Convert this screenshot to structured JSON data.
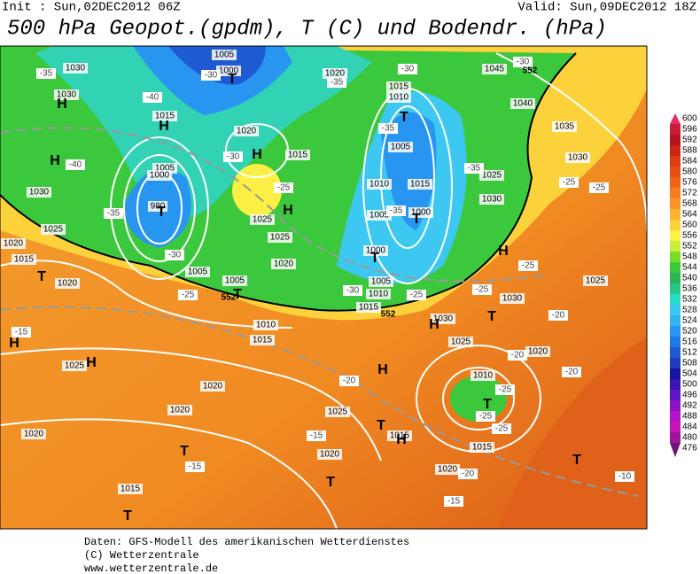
{
  "header": {
    "init": "Init : Sun,02DEC2012 06Z",
    "valid": "Valid: Sun,09DEC2012 18Z",
    "title": "500 hPa Geopot.(gpdm), T (C) und Bodendr. (hPa)"
  },
  "colorbar": {
    "ticks": [
      600,
      596,
      592,
      588,
      584,
      580,
      576,
      572,
      568,
      564,
      560,
      556,
      552,
      548,
      544,
      540,
      536,
      532,
      528,
      524,
      520,
      516,
      512,
      508,
      504,
      500,
      496,
      492,
      488,
      484,
      480,
      476
    ]
  },
  "footer": {
    "lines": [
      "Daten: GFS-Modell des amerikanischen Wetterdienstes",
      "(C) Wetterzentrale",
      "www.wetterzentrale.de"
    ]
  },
  "isobar_labels": [
    "1030",
    "1005",
    "1000",
    "1020",
    "1015",
    "1010",
    "1045",
    "1040",
    "1035",
    "1030",
    "1030",
    "1015",
    "1020",
    "1015",
    "1005",
    "1000",
    "980",
    "1005",
    "1010",
    "1015",
    "1005",
    "1000",
    "1000",
    "1025",
    "1030",
    "1030",
    "1025",
    "1020",
    "1015",
    "1020",
    "1005",
    "1005",
    "1025",
    "1025",
    "1020",
    "1010",
    "1015",
    "1005",
    "1010",
    "1015",
    "1030",
    "1025",
    "1020",
    "1025",
    "1030",
    "1025",
    "1020",
    "1020",
    "1025",
    "1010",
    "1015",
    "1015",
    "1020",
    "1020",
    "1020",
    "1015"
  ],
  "temperature_labels": [
    "-35",
    "-40",
    "-30",
    "-35",
    "-30",
    "-30",
    "-35",
    "-40",
    "-35",
    "-30",
    "-25",
    "-25",
    "-30",
    "-25",
    "-25",
    "-35",
    "-35",
    "-30",
    "-25",
    "-25",
    "-25",
    "-20",
    "-20",
    "-20",
    "-25",
    "-25",
    "-25",
    "-20",
    "-15",
    "-15",
    "-15",
    "-15",
    "-20",
    "-10"
  ],
  "centers": [
    "H",
    "H",
    "H",
    "T",
    "T",
    "H",
    "T",
    "H",
    "T",
    "T",
    "T",
    "T",
    "H",
    "T",
    "H",
    "H",
    "H",
    "H",
    "T",
    "T",
    "H",
    "T",
    "T",
    "T",
    "T"
  ],
  "geopotential_labels": [
    "552",
    "552",
    "552"
  ]
}
